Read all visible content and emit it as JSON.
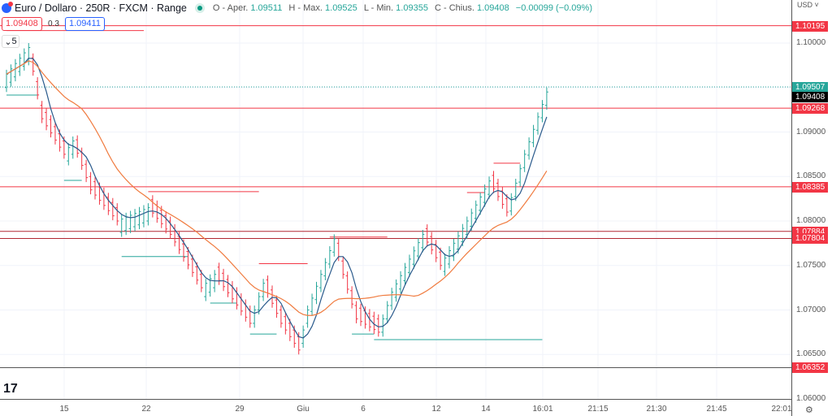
{
  "header": {
    "title": "Euro / Dollaro · 250R · FXCM · Range",
    "open_label": "O - Aper.",
    "open": "1.09511",
    "high_label": "H - Max.",
    "high": "1.09525",
    "low_label": "L - Min.",
    "low": "1.09355",
    "close_label": "C - Chius.",
    "close": "1.09408",
    "change": "−0.00099 (−0.09%)"
  },
  "trade": {
    "sell": "1.09408",
    "spread": "0.3",
    "buy": "1.09411"
  },
  "interval": {
    "label": "5"
  },
  "axis": {
    "currency": "USD",
    "ticks": [
      "1.10000",
      "1.09000",
      "1.08500",
      "1.08000",
      "1.07500",
      "1.07000",
      "1.06500",
      "1.06000"
    ],
    "x_ticks": [
      "15",
      "22",
      "29",
      "Giu",
      "6",
      "12",
      "14",
      "16:01",
      "21:15",
      "21:30",
      "21:45",
      "22:01"
    ]
  },
  "tags": [
    {
      "value": "1.10195",
      "color": "#f23645"
    },
    {
      "value": "1.09507",
      "color": "#26a69a"
    },
    {
      "value": "1.09408",
      "color": "#000000"
    },
    {
      "value": "1.09268",
      "color": "#f23645"
    },
    {
      "value": "1.08385",
      "color": "#f23645"
    },
    {
      "value": "1.07884",
      "color": "#f23645"
    },
    {
      "value": "1.07804",
      "color": "#f23645"
    },
    {
      "value": "1.06352",
      "color": "#f23645"
    }
  ],
  "chart_data": {
    "type": "line",
    "title": "Euro / Dollaro · 250R · FXCM · Range",
    "ylim": [
      1.06,
      1.1
    ],
    "range_size": 0.0025,
    "price_waypoints": [
      [
        0,
        1.0965
      ],
      [
        5,
        1.0995
      ],
      [
        8,
        1.0915
      ],
      [
        13,
        1.0875
      ],
      [
        15,
        1.089
      ],
      [
        19,
        1.0835
      ],
      [
        25,
        1.08
      ],
      [
        32,
        1.0815
      ],
      [
        37,
        1.0785
      ],
      [
        44,
        1.0725
      ],
      [
        47,
        1.074
      ],
      [
        55,
        1.0685
      ],
      [
        58,
        1.073
      ],
      [
        62,
        1.0685
      ],
      [
        66,
        1.0655
      ],
      [
        68,
        1.07
      ],
      [
        74,
        1.078
      ],
      [
        76,
        1.074
      ],
      [
        79,
        1.069
      ],
      [
        84,
        1.0675
      ],
      [
        87,
        1.072
      ],
      [
        94,
        1.0785
      ],
      [
        98,
        1.075
      ],
      [
        104,
        1.08
      ],
      [
        109,
        1.0845
      ],
      [
        113,
        1.081
      ],
      [
        117,
        1.0875
      ],
      [
        122,
        1.0945
      ]
    ],
    "horizontal_lines": [
      {
        "price": 1.10195,
        "color": "#f23645"
      },
      {
        "price": 1.09268,
        "color": "#f23645"
      },
      {
        "price": 1.08385,
        "color": "#f23645"
      },
      {
        "price": 1.07884,
        "color": "#b22833"
      },
      {
        "price": 1.07804,
        "color": "#b22833"
      },
      {
        "price": 1.06352,
        "color": "#555555"
      }
    ],
    "current_price_line": 1.09507,
    "segments": [
      {
        "price": 1.1014,
        "from": 0,
        "to": 31,
        "color": "#f23645"
      },
      {
        "price": 1.0833,
        "from": 32,
        "to": 57,
        "color": "#f23645"
      },
      {
        "price": 1.0752,
        "from": 57,
        "to": 68,
        "color": "#f23645"
      },
      {
        "price": 1.0782,
        "from": 73,
        "to": 86,
        "color": "#f23645"
      },
      {
        "price": 1.0832,
        "from": 104,
        "to": 108,
        "color": "#f23645"
      },
      {
        "price": 1.0865,
        "from": 110,
        "to": 116,
        "color": "#f23645"
      },
      {
        "price": 1.09416,
        "from": 0,
        "to": 7,
        "color": "#26a69a"
      },
      {
        "price": 1.08457,
        "from": 13,
        "to": 17,
        "color": "#26a69a"
      },
      {
        "price": 1.076,
        "from": 26,
        "to": 41,
        "color": "#26a69a"
      },
      {
        "price": 1.07078,
        "from": 46,
        "to": 52,
        "color": "#26a69a"
      },
      {
        "price": 1.0673,
        "from": 55,
        "to": 61,
        "color": "#26a69a"
      },
      {
        "price": 1.0673,
        "from": 78,
        "to": 83,
        "color": "#26a69a"
      },
      {
        "price": 1.06667,
        "from": 83,
        "to": 121,
        "color": "#26a69a"
      }
    ],
    "ma_fast": {
      "period": 5,
      "color": "#2a5a8c"
    },
    "ma_slow": {
      "period": 18,
      "color": "#f07b3f"
    }
  }
}
